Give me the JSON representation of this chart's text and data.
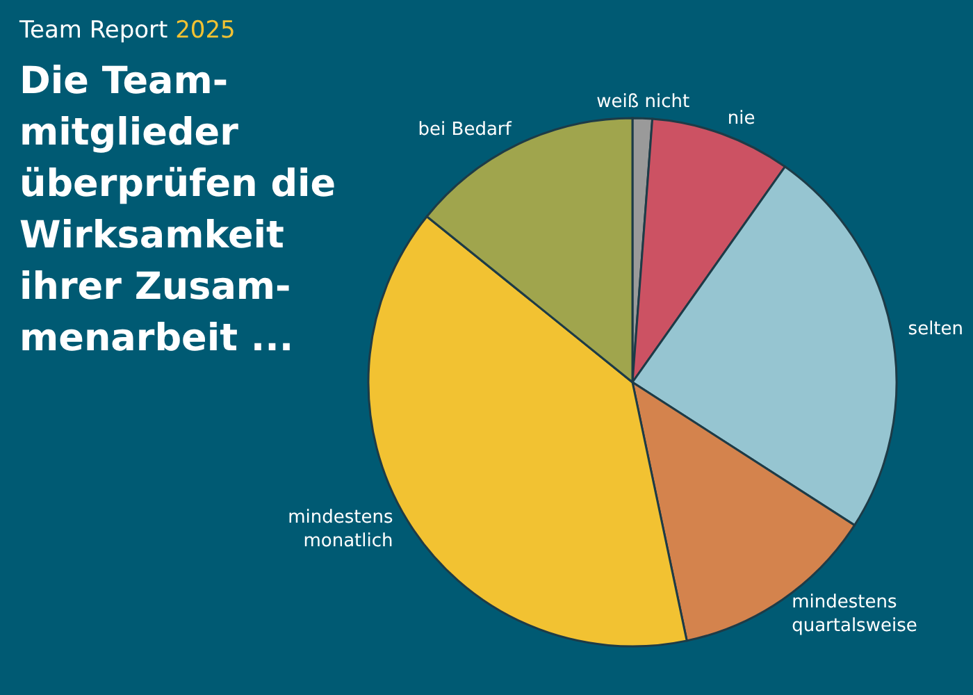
{
  "chart_data": {
    "type": "pie",
    "subtitle": "Team Report 2025",
    "title": "Die Team-\nmitglieder\nüberprüfen die\nWirksamkeit\nihrer Zusam-\nmenarbeit ...",
    "categories": [
      "weiß nicht",
      "nie",
      "selten",
      "mindestens\nquartalsweise",
      "mindestens\nmonatlich",
      "bei Bedarf"
    ],
    "values": [
      1.2,
      8.6,
      24.3,
      12.6,
      39.1,
      14.2
    ],
    "colors": [
      "#9a9a9a",
      "#cc5263",
      "#96c5d1",
      "#d4834d",
      "#f2c232",
      "#a0a54d"
    ],
    "legend": false
  }
}
